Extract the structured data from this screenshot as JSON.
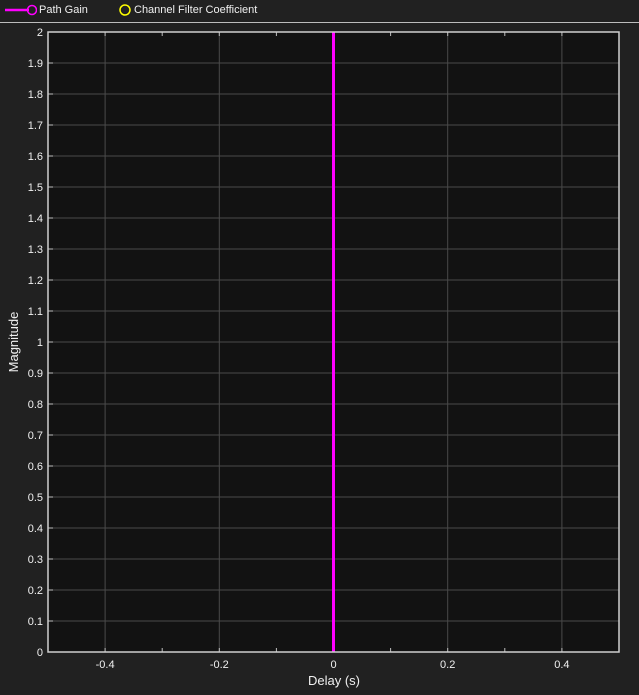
{
  "legend": {
    "items": [
      {
        "label": "Path Gain",
        "color": "#ff00ff",
        "icon": "stem-circle-icon"
      },
      {
        "label": "Channel Filter Coefficient",
        "color": "#ffff00",
        "icon": "circle-icon"
      }
    ]
  },
  "chart_data": {
    "type": "stem",
    "xlabel": "Delay (s)",
    "ylabel": "Magnitude",
    "xlim": [
      -0.5,
      0.5
    ],
    "ylim": [
      0,
      2
    ],
    "xticks": [
      "-0.4",
      "-0.2",
      "0",
      "0.2",
      "0.4"
    ],
    "yticks": [
      "0",
      "0.1",
      "0.2",
      "0.3",
      "0.4",
      "0.5",
      "0.6",
      "0.7",
      "0.8",
      "0.9",
      "1",
      "1.1",
      "1.2",
      "1.3",
      "1.4",
      "1.5",
      "1.6",
      "1.7",
      "1.8",
      "1.9",
      "2"
    ],
    "grid": true,
    "background": "#121212",
    "legend_position": "top",
    "series": [
      {
        "name": "Path Gain",
        "color": "#ff00ff",
        "x": [
          0
        ],
        "y": [
          2
        ]
      },
      {
        "name": "Channel Filter Coefficient",
        "color": "#ffff00",
        "x": [],
        "y": []
      }
    ]
  }
}
